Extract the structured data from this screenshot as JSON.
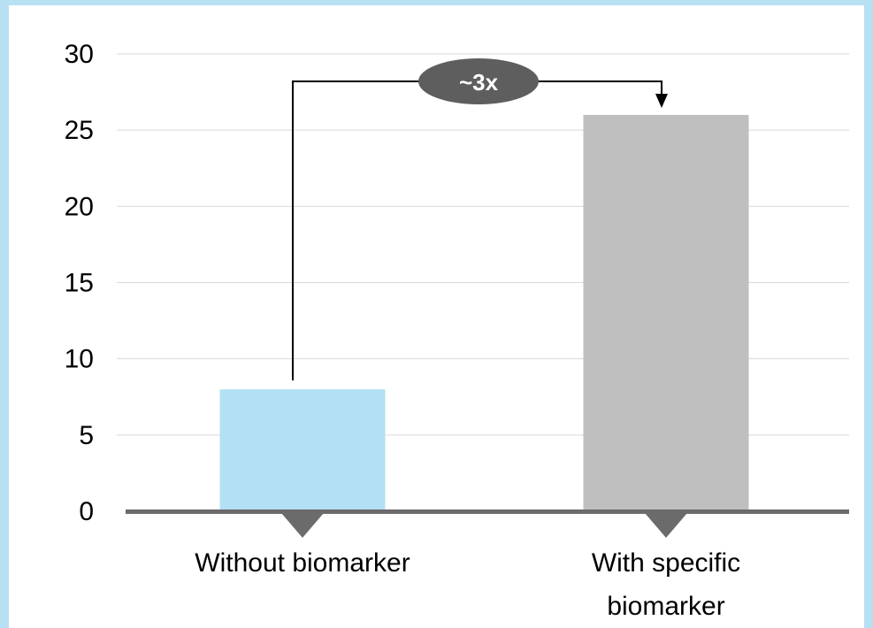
{
  "chart_data": {
    "type": "bar",
    "categories": [
      "Without biomarker",
      "With specific biomarker"
    ],
    "category_lines": [
      [
        "Without biomarker"
      ],
      [
        "With specific",
        "biomarker"
      ]
    ],
    "values": [
      8,
      26
    ],
    "ylim": [
      0,
      30
    ],
    "yticks": [
      "0",
      "5",
      "10",
      "15",
      "20",
      "25",
      "30"
    ],
    "grid": true,
    "annotation": "~3x"
  },
  "colors": {
    "background": "#b7e0f3",
    "bar_without": "#b3e0f4",
    "bar_with": "#bfbfbf",
    "axis": "#6b6b6b",
    "gridline": "#d9d9d9",
    "badge": "#5e5e5e",
    "arrow": "#000000"
  }
}
